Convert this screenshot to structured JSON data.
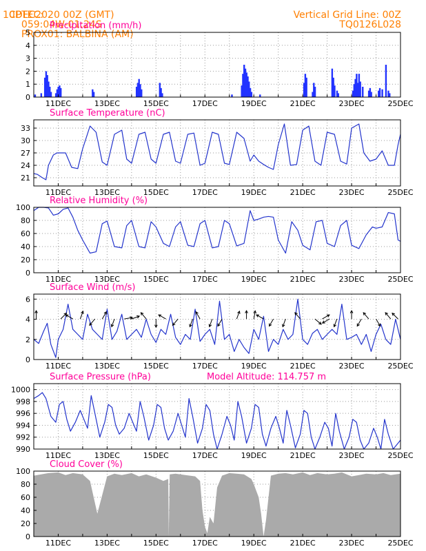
{
  "header": {
    "source": "CPTEC:",
    "coords": "059:04W-01:24S",
    "location": "PROX01: BALBINA (AM)",
    "date": "10DEC2020 00Z (GMT)",
    "grid_note": "Vertical Grid Line: 00Z",
    "model_code": "TQ0126L028"
  },
  "chart_data": [
    {
      "type": "bar",
      "title": "Precipitation (mm/h)",
      "ylim": [
        0,
        5
      ],
      "yticks": [
        0,
        1,
        2,
        3,
        4,
        5
      ],
      "xticks": [
        "11DEC",
        "13DEC",
        "15DEC",
        "17DEC",
        "19DEC",
        "21DEC",
        "23DEC",
        "25DEC"
      ],
      "color": "#2233ff",
      "bars": [
        {
          "day": 10.05,
          "value": 0.2
        },
        {
          "day": 10.3,
          "value": 0.3
        },
        {
          "day": 10.45,
          "value": 1.5
        },
        {
          "day": 10.5,
          "value": 2.0
        },
        {
          "day": 10.55,
          "value": 1.7
        },
        {
          "day": 10.6,
          "value": 1.2
        },
        {
          "day": 10.65,
          "value": 0.8
        },
        {
          "day": 10.7,
          "value": 0.4
        },
        {
          "day": 10.9,
          "value": 0.3
        },
        {
          "day": 10.95,
          "value": 0.6
        },
        {
          "day": 11.0,
          "value": 0.8
        },
        {
          "day": 11.05,
          "value": 0.9
        },
        {
          "day": 11.1,
          "value": 0.7
        },
        {
          "day": 12.4,
          "value": 0.6
        },
        {
          "day": 12.45,
          "value": 0.4
        },
        {
          "day": 14.2,
          "value": 0.8
        },
        {
          "day": 14.25,
          "value": 1.1
        },
        {
          "day": 14.3,
          "value": 1.4
        },
        {
          "day": 14.35,
          "value": 1.0
        },
        {
          "day": 14.4,
          "value": 0.6
        },
        {
          "day": 15.15,
          "value": 1.1
        },
        {
          "day": 15.2,
          "value": 0.7
        },
        {
          "day": 15.25,
          "value": 0.3
        },
        {
          "day": 18.1,
          "value": 0.2
        },
        {
          "day": 18.5,
          "value": 0.9
        },
        {
          "day": 18.55,
          "value": 1.8
        },
        {
          "day": 18.6,
          "value": 2.5
        },
        {
          "day": 18.65,
          "value": 2.2
        },
        {
          "day": 18.7,
          "value": 1.9
        },
        {
          "day": 18.75,
          "value": 1.6
        },
        {
          "day": 18.8,
          "value": 1.2
        },
        {
          "day": 18.85,
          "value": 0.7
        },
        {
          "day": 18.9,
          "value": 0.4
        },
        {
          "day": 19.25,
          "value": 0.2
        },
        {
          "day": 21.05,
          "value": 1.1
        },
        {
          "day": 21.1,
          "value": 1.8
        },
        {
          "day": 21.15,
          "value": 1.5
        },
        {
          "day": 21.4,
          "value": 0.4
        },
        {
          "day": 21.45,
          "value": 1.1
        },
        {
          "day": 21.5,
          "value": 0.8
        },
        {
          "day": 22.2,
          "value": 2.2
        },
        {
          "day": 22.25,
          "value": 1.5
        },
        {
          "day": 22.3,
          "value": 0.9
        },
        {
          "day": 22.4,
          "value": 0.5
        },
        {
          "day": 22.45,
          "value": 0.3
        },
        {
          "day": 23.05,
          "value": 0.5
        },
        {
          "day": 23.1,
          "value": 1.0
        },
        {
          "day": 23.15,
          "value": 1.4
        },
        {
          "day": 23.2,
          "value": 1.8
        },
        {
          "day": 23.25,
          "value": 1.1
        },
        {
          "day": 23.3,
          "value": 1.8
        },
        {
          "day": 23.35,
          "value": 1.2
        },
        {
          "day": 23.45,
          "value": 0.8
        },
        {
          "day": 23.7,
          "value": 0.5
        },
        {
          "day": 23.75,
          "value": 0.7
        },
        {
          "day": 23.8,
          "value": 0.4
        },
        {
          "day": 24.1,
          "value": 0.5
        },
        {
          "day": 24.15,
          "value": 0.7
        },
        {
          "day": 24.25,
          "value": 0.6
        },
        {
          "day": 24.4,
          "value": 2.5
        },
        {
          "day": 24.5,
          "value": 0.5
        },
        {
          "day": 24.55,
          "value": 0.3
        }
      ]
    },
    {
      "type": "line",
      "title": "Surface Temperature (nC)",
      "ylim": [
        19,
        35
      ],
      "yticks": [
        21,
        24,
        27,
        30,
        33
      ],
      "xticks": [
        "11DEC",
        "13DEC",
        "15DEC",
        "17DEC",
        "19DEC",
        "21DEC",
        "23DEC",
        "25DEC"
      ],
      "color": "#2233cc",
      "x": [
        10.0,
        10.15,
        10.35,
        10.5,
        10.6,
        10.8,
        10.95,
        11.3,
        11.55,
        11.8,
        12.0,
        12.3,
        12.55,
        12.8,
        13.0,
        13.3,
        13.6,
        13.8,
        14.0,
        14.3,
        14.55,
        14.8,
        15.0,
        15.3,
        15.55,
        15.8,
        16.0,
        16.3,
        16.55,
        16.8,
        17.0,
        17.3,
        17.55,
        17.8,
        18.0,
        18.3,
        18.6,
        18.85,
        19.0,
        19.2,
        19.4,
        19.6,
        19.8,
        20.0,
        20.25,
        20.5,
        20.75,
        21.0,
        21.25,
        21.5,
        21.75,
        22.0,
        22.3,
        22.55,
        22.8,
        23.0,
        23.3,
        23.5,
        23.75,
        24.0,
        24.25,
        24.5,
        24.75,
        24.9,
        25.0
      ],
      "y": [
        22.0,
        21.8,
        21.0,
        20.5,
        24.0,
        26.5,
        27.0,
        27.0,
        23.5,
        23.2,
        28.0,
        33.5,
        32.0,
        24.8,
        24.0,
        31.5,
        32.5,
        25.5,
        24.5,
        31.5,
        32.0,
        25.5,
        24.5,
        31.5,
        32.0,
        25.0,
        24.5,
        31.5,
        31.8,
        24.0,
        24.5,
        32.0,
        31.5,
        24.5,
        24.2,
        32.0,
        30.5,
        25.0,
        26.5,
        25.0,
        24.2,
        23.5,
        23.0,
        29.0,
        34.0,
        24.0,
        24.2,
        32.5,
        33.5,
        25.0,
        24.0,
        32.0,
        31.5,
        25.0,
        24.3,
        33.0,
        34.0,
        27.0,
        25.0,
        25.5,
        27.5,
        24.0,
        24.0,
        29.0,
        31.5
      ]
    },
    {
      "type": "line",
      "title": "Relative Humidity (%)",
      "ylim": [
        0,
        100
      ],
      "yticks": [
        0,
        20,
        40,
        60,
        80,
        100
      ],
      "xticks": [
        "11DEC",
        "13DEC",
        "15DEC",
        "17DEC",
        "19DEC",
        "21DEC",
        "23DEC",
        "25DEC"
      ],
      "color": "#2233cc",
      "x": [
        10.0,
        10.2,
        10.4,
        10.6,
        10.8,
        11.0,
        11.2,
        11.4,
        11.6,
        11.8,
        12.0,
        12.3,
        12.55,
        12.8,
        13.0,
        13.3,
        13.6,
        13.8,
        14.0,
        14.3,
        14.55,
        14.8,
        15.0,
        15.3,
        15.55,
        15.8,
        16.0,
        16.3,
        16.55,
        16.8,
        17.0,
        17.3,
        17.55,
        17.8,
        18.0,
        18.3,
        18.6,
        18.85,
        19.0,
        19.2,
        19.4,
        19.6,
        19.8,
        20.0,
        20.3,
        20.55,
        20.8,
        21.0,
        21.3,
        21.55,
        21.8,
        22.0,
        22.3,
        22.55,
        22.8,
        23.0,
        23.3,
        23.6,
        23.85,
        24.0,
        24.25,
        24.5,
        24.75,
        24.9,
        25.0
      ],
      "y": [
        95.0,
        100.0,
        100.0,
        99.0,
        88.0,
        90.0,
        97.0,
        99.0,
        85.0,
        65.0,
        50.0,
        30.0,
        32.0,
        75.0,
        79.0,
        40.0,
        38.0,
        72.0,
        80.0,
        40.0,
        38.0,
        78.0,
        70.0,
        45.0,
        40.0,
        70.0,
        78.0,
        42.0,
        40.0,
        75.0,
        80.0,
        38.0,
        40.0,
        80.0,
        75.0,
        41.0,
        45.0,
        95.0,
        80.0,
        82.0,
        85.0,
        86.0,
        85.0,
        50.0,
        30.0,
        78.0,
        65.0,
        42.0,
        35.0,
        78.0,
        80.0,
        45.0,
        40.0,
        72.0,
        80.0,
        42.0,
        37.0,
        58.0,
        70.0,
        68.0,
        70.0,
        92.0,
        90.0,
        50.0,
        48.0
      ]
    },
    {
      "type": "line",
      "title": "Surface Wind (m/s)",
      "ylim": [
        0,
        6.5
      ],
      "yticks": [
        0,
        2,
        4,
        6
      ],
      "xticks": [
        "11DEC",
        "13DEC",
        "15DEC",
        "17DEC",
        "19DEC",
        "21DEC",
        "23DEC",
        "25DEC"
      ],
      "color": "#2233cc",
      "x": [
        10.0,
        10.2,
        10.4,
        10.55,
        10.7,
        10.9,
        11.0,
        11.2,
        11.4,
        11.6,
        11.8,
        12.0,
        12.2,
        12.4,
        12.6,
        12.8,
        13.0,
        13.2,
        13.4,
        13.6,
        13.8,
        14.0,
        14.2,
        14.4,
        14.6,
        14.8,
        15.0,
        15.2,
        15.4,
        15.6,
        15.8,
        16.0,
        16.2,
        16.4,
        16.6,
        16.8,
        17.0,
        17.2,
        17.4,
        17.6,
        17.8,
        18.0,
        18.2,
        18.4,
        18.6,
        18.8,
        19.0,
        19.2,
        19.4,
        19.6,
        19.8,
        20.0,
        20.2,
        20.4,
        20.6,
        20.8,
        21.0,
        21.2,
        21.4,
        21.6,
        21.8,
        22.0,
        22.2,
        22.4,
        22.6,
        22.8,
        23.0,
        23.2,
        23.4,
        23.6,
        23.8,
        24.0,
        24.2,
        24.4,
        24.6,
        24.8,
        25.0
      ],
      "y": [
        2.0,
        1.6,
        2.8,
        3.6,
        1.5,
        0.2,
        2.0,
        3.0,
        5.5,
        3.0,
        2.5,
        2.0,
        4.5,
        3.0,
        2.5,
        2.0,
        5.0,
        2.0,
        2.8,
        4.5,
        2.0,
        2.5,
        3.0,
        2.2,
        4.0,
        2.5,
        1.7,
        3.0,
        2.5,
        4.5,
        2.2,
        1.5,
        2.5,
        2.0,
        5.0,
        1.8,
        2.5,
        3.0,
        1.5,
        5.8,
        2.0,
        2.5,
        0.8,
        2.0,
        1.2,
        0.6,
        3.0,
        2.0,
        4.3,
        0.8,
        2.0,
        1.5,
        3.0,
        2.0,
        2.5,
        6.0,
        2.0,
        1.5,
        2.6,
        3.0,
        2.0,
        2.5,
        3.0,
        2.5,
        5.5,
        2.0,
        2.2,
        2.5,
        1.5,
        2.5,
        0.8,
        2.5,
        3.5,
        2.0,
        1.5,
        4.0,
        2.0
      ]
    },
    {
      "type": "line",
      "title": "Surface Pressure (hPa)",
      "subtitle": "Model Altitude: 114.757 m",
      "ylim": [
        990,
        1001
      ],
      "yticks": [
        990,
        992,
        994,
        996,
        998,
        1000
      ],
      "xticks": [
        "11DEC",
        "13DEC",
        "15DEC",
        "17DEC",
        "19DEC",
        "21DEC",
        "23DEC",
        "25DEC"
      ],
      "color": "#2233cc",
      "x": [
        10.0,
        10.2,
        10.35,
        10.5,
        10.7,
        10.9,
        11.05,
        11.2,
        11.35,
        11.5,
        11.7,
        11.9,
        12.05,
        12.2,
        12.35,
        12.5,
        12.7,
        12.9,
        13.05,
        13.2,
        13.35,
        13.5,
        13.7,
        13.9,
        14.05,
        14.2,
        14.35,
        14.5,
        14.7,
        14.9,
        15.05,
        15.2,
        15.35,
        15.5,
        15.7,
        15.9,
        16.05,
        16.2,
        16.35,
        16.5,
        16.7,
        16.9,
        17.05,
        17.2,
        17.35,
        17.5,
        17.7,
        17.9,
        18.05,
        18.2,
        18.35,
        18.5,
        18.7,
        18.9,
        19.05,
        19.2,
        19.35,
        19.5,
        19.7,
        19.9,
        20.05,
        20.2,
        20.35,
        20.5,
        20.7,
        20.9,
        21.05,
        21.2,
        21.35,
        21.5,
        21.7,
        21.9,
        22.05,
        22.2,
        22.35,
        22.5,
        22.7,
        22.9,
        23.05,
        23.2,
        23.35,
        23.5,
        23.7,
        23.9,
        24.05,
        24.2,
        24.35,
        24.5,
        24.7,
        24.9,
        25.0
      ],
      "y": [
        998.5,
        999.0,
        999.5,
        998.5,
        995.5,
        994.5,
        997.5,
        998.0,
        995.0,
        993.0,
        994.5,
        996.5,
        995.0,
        993.5,
        999.0,
        996.0,
        992.0,
        994.5,
        997.5,
        997.0,
        994.0,
        992.5,
        993.5,
        996.0,
        994.5,
        993.0,
        998.0,
        995.5,
        991.5,
        994.0,
        997.5,
        997.0,
        993.5,
        991.5,
        993.0,
        996.0,
        994.0,
        992.0,
        998.5,
        995.5,
        991.0,
        993.5,
        997.5,
        996.5,
        992.5,
        990.0,
        992.5,
        995.5,
        994.0,
        991.5,
        998.0,
        995.5,
        991.0,
        993.5,
        997.5,
        997.0,
        992.5,
        990.5,
        993.5,
        995.5,
        993.5,
        991.0,
        996.5,
        994.0,
        990.2,
        992.5,
        996.5,
        996.0,
        992.0,
        990.0,
        992.0,
        994.5,
        993.5,
        990.5,
        996.0,
        993.0,
        990.0,
        992.0,
        995.0,
        994.5,
        991.5,
        990.0,
        991.0,
        993.5,
        992.0,
        990.0,
        995.0,
        992.5,
        990.0,
        991.0,
        991.5
      ]
    },
    {
      "type": "area",
      "title": "Cloud Cover (%)",
      "ylim": [
        0,
        100
      ],
      "yticks": [
        0,
        20,
        40,
        60,
        80,
        100
      ],
      "xticks": [
        "11DEC",
        "13DEC",
        "15DEC",
        "17DEC",
        "19DEC",
        "21DEC",
        "23DEC",
        "25DEC"
      ],
      "color": "#aaaaaa",
      "x": [
        10.0,
        10.3,
        10.6,
        11.0,
        11.3,
        11.6,
        12.0,
        12.3,
        12.6,
        13.0,
        13.3,
        13.6,
        14.0,
        14.3,
        14.6,
        15.0,
        15.3,
        15.5,
        15.52,
        15.56,
        15.8,
        16.2,
        16.6,
        16.8,
        16.9,
        17.0,
        17.1,
        17.2,
        17.35,
        17.5,
        17.7,
        18.0,
        18.3,
        18.6,
        18.9,
        19.0,
        19.1,
        19.2,
        19.3,
        19.4,
        19.5,
        19.7,
        20.0,
        20.3,
        20.6,
        21.0,
        21.3,
        21.6,
        22.0,
        22.3,
        22.6,
        23.0,
        23.3,
        23.6,
        24.0,
        24.3,
        24.6,
        25.0
      ],
      "y": [
        93.0,
        95.0,
        97.0,
        98.0,
        94.0,
        97.0,
        95.0,
        85.0,
        35.0,
        92.0,
        96.0,
        94.0,
        97.0,
        92.0,
        95.0,
        90.0,
        85.0,
        88.0,
        0.0,
        95.0,
        96.0,
        94.0,
        92.0,
        85.0,
        40.0,
        15.0,
        5.0,
        30.0,
        20.0,
        75.0,
        93.0,
        97.0,
        96.0,
        95.0,
        88.0,
        80.0,
        70.0,
        60.0,
        35.0,
        0.0,
        25.0,
        93.0,
        96.0,
        97.0,
        95.0,
        98.0,
        94.0,
        97.0,
        95.0,
        96.0,
        98.0,
        92.0,
        94.0,
        96.0,
        95.0,
        97.0,
        94.0,
        96.0
      ]
    }
  ],
  "wind_arrows": [
    {
      "day": 10.1,
      "dir_deg": 0
    },
    {
      "day": 11.1,
      "dir_deg": 45
    },
    {
      "day": 11.6,
      "dir_deg": 300
    },
    {
      "day": 11.9,
      "dir_deg": 20
    },
    {
      "day": 12.5,
      "dir_deg": 220
    },
    {
      "day": 12.8,
      "dir_deg": 30
    },
    {
      "day": 13.3,
      "dir_deg": 200
    },
    {
      "day": 13.7,
      "dir_deg": 80
    },
    {
      "day": 14.0,
      "dir_deg": 70
    },
    {
      "day": 14.6,
      "dir_deg": 320
    },
    {
      "day": 15.0,
      "dir_deg": 180
    },
    {
      "day": 15.4,
      "dir_deg": 300
    },
    {
      "day": 15.9,
      "dir_deg": 220
    },
    {
      "day": 16.5,
      "dir_deg": 200
    },
    {
      "day": 16.8,
      "dir_deg": 330
    },
    {
      "day": 17.3,
      "dir_deg": 200
    },
    {
      "day": 17.7,
      "dir_deg": 210
    },
    {
      "day": 18.3,
      "dir_deg": 20
    },
    {
      "day": 18.7,
      "dir_deg": 0
    },
    {
      "day": 19.0,
      "dir_deg": 10
    },
    {
      "day": 19.4,
      "dir_deg": 300
    },
    {
      "day": 19.8,
      "dir_deg": 210
    },
    {
      "day": 20.3,
      "dir_deg": 200
    },
    {
      "day": 20.9,
      "dir_deg": 320
    },
    {
      "day": 21.5,
      "dir_deg": 130
    },
    {
      "day": 21.8,
      "dir_deg": 60
    },
    {
      "day": 22.1,
      "dir_deg": 240
    },
    {
      "day": 22.4,
      "dir_deg": 200
    },
    {
      "day": 23.0,
      "dir_deg": 0
    },
    {
      "day": 23.4,
      "dir_deg": 210
    },
    {
      "day": 23.7,
      "dir_deg": 320
    },
    {
      "day": 24.0,
      "dir_deg": 150
    },
    {
      "day": 24.6,
      "dir_deg": 320
    },
    {
      "day": 24.9,
      "dir_deg": 315
    }
  ]
}
